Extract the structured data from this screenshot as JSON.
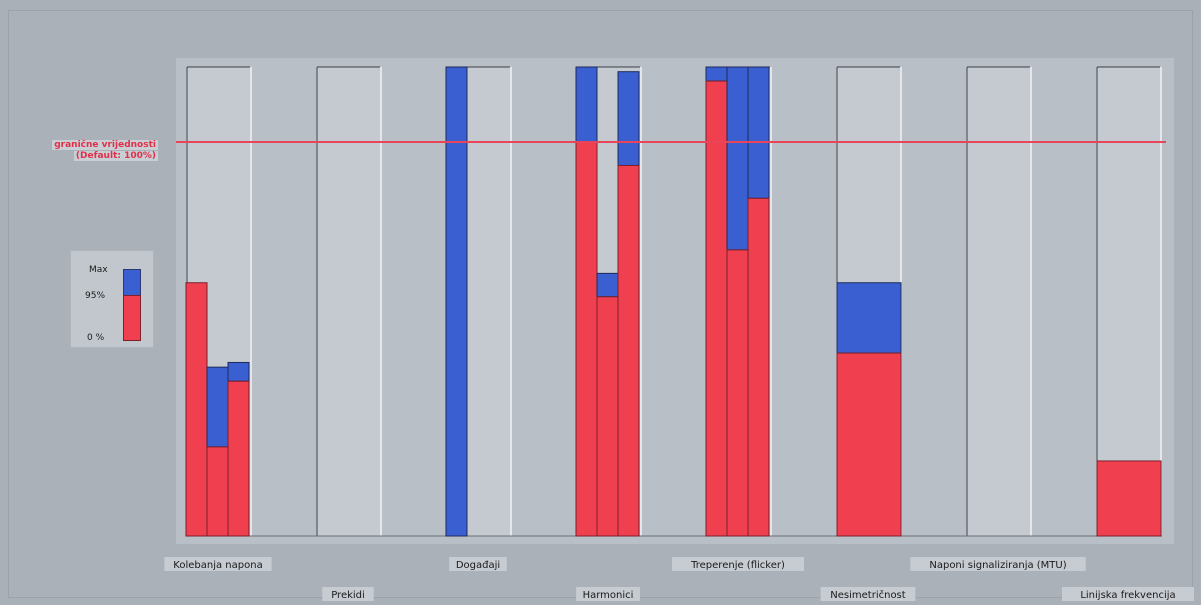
{
  "chart_data": {
    "type": "bar",
    "title": "",
    "xlabel": "",
    "ylabel": "",
    "ylim": [
      0,
      100
    ],
    "limit": {
      "label_lines": [
        "granične vrijednosti",
        "(Default: 100%)"
      ],
      "value": 84
    },
    "legend": {
      "max_label": "Max",
      "p95_label": "95%",
      "zero_label": "0 %",
      "max_color": "#3a5fd0",
      "p95_color": "#f0404f"
    },
    "categories": [
      {
        "label": "Kolebanja napona",
        "row": 1,
        "bars": [
          {
            "p95": 54,
            "max": 54
          },
          {
            "p95": 19,
            "max": 36
          },
          {
            "p95": 33,
            "max": 37
          }
        ]
      },
      {
        "label": "Prekidi",
        "row": 2,
        "bars": []
      },
      {
        "label": "Događaji",
        "row": 1,
        "bars": [
          {
            "p95": 0,
            "max": 100
          }
        ]
      },
      {
        "label": "Harmonici",
        "row": 2,
        "bars": [
          {
            "p95": 84,
            "max": 100
          },
          {
            "p95": 51,
            "max": 56
          },
          {
            "p95": 79,
            "max": 99
          }
        ]
      },
      {
        "label": "Treperenje (flicker)",
        "row": 1,
        "bars": [
          {
            "p95": 97,
            "max": 100
          },
          {
            "p95": 61,
            "max": 100
          },
          {
            "p95": 72,
            "max": 100
          }
        ]
      },
      {
        "label": "Nesimetričnost",
        "row": 2,
        "bars": [
          {
            "p95": 39,
            "max": 54
          }
        ]
      },
      {
        "label": "Naponi signaliziranja (MTU)",
        "row": 1,
        "bars": []
      },
      {
        "label": "Linijska frekvencija",
        "row": 2,
        "bars": [
          {
            "p95": 16,
            "max": 16
          }
        ]
      }
    ]
  }
}
